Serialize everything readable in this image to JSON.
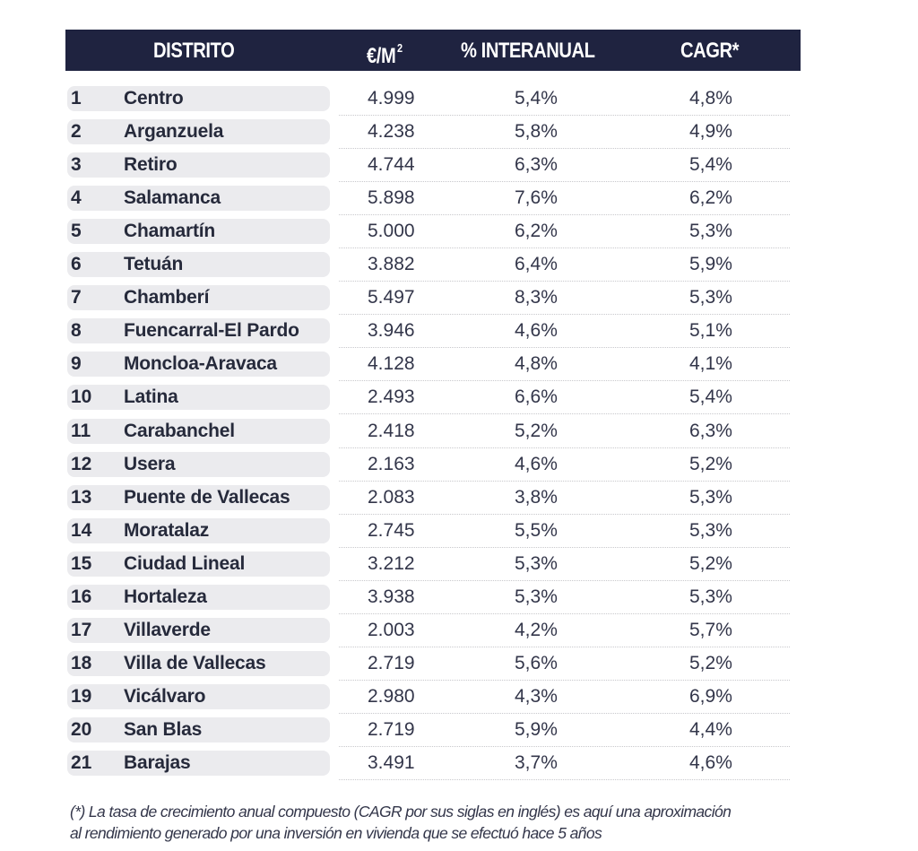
{
  "table": {
    "headers": {
      "distrito": "DISTRITO",
      "price": "€/M",
      "price_sup": "2",
      "interanual": "% INTERANUAL",
      "cagr": "CAGR*"
    },
    "colors": {
      "header_bg": "#1f2340",
      "header_text": "#ffffff",
      "pill_bg": "#ebebee",
      "text": "#262a3b"
    },
    "rows": [
      {
        "rank": "1",
        "name": "Centro",
        "price": "4.999",
        "interanual": "5,4%",
        "cagr": "4,8%"
      },
      {
        "rank": "2",
        "name": "Arganzuela",
        "price": "4.238",
        "interanual": "5,8%",
        "cagr": "4,9%"
      },
      {
        "rank": "3",
        "name": "Retiro",
        "price": "4.744",
        "interanual": "6,3%",
        "cagr": "5,4%"
      },
      {
        "rank": "4",
        "name": "Salamanca",
        "price": "5.898",
        "interanual": "7,6%",
        "cagr": "6,2%"
      },
      {
        "rank": "5",
        "name": "Chamartín",
        "price": "5.000",
        "interanual": "6,2%",
        "cagr": "5,3%"
      },
      {
        "rank": "6",
        "name": "Tetuán",
        "price": "3.882",
        "interanual": "6,4%",
        "cagr": "5,9%"
      },
      {
        "rank": "7",
        "name": "Chamberí",
        "price": "5.497",
        "interanual": "8,3%",
        "cagr": "5,3%"
      },
      {
        "rank": "8",
        "name": "Fuencarral-El Pardo",
        "price": "3.946",
        "interanual": "4,6%",
        "cagr": "5,1%"
      },
      {
        "rank": "9",
        "name": "Moncloa-Aravaca",
        "price": "4.128",
        "interanual": "4,8%",
        "cagr": "4,1%"
      },
      {
        "rank": "10",
        "name": "Latina",
        "price": "2.493",
        "interanual": "6,6%",
        "cagr": "5,4%"
      },
      {
        "rank": "11",
        "name": "Carabanchel",
        "price": "2.418",
        "interanual": "5,2%",
        "cagr": "6,3%"
      },
      {
        "rank": "12",
        "name": "Usera",
        "price": "2.163",
        "interanual": "4,6%",
        "cagr": "5,2%"
      },
      {
        "rank": "13",
        "name": "Puente de Vallecas",
        "price": "2.083",
        "interanual": "3,8%",
        "cagr": "5,3%"
      },
      {
        "rank": "14",
        "name": "Moratalaz",
        "price": "2.745",
        "interanual": "5,5%",
        "cagr": "5,3%"
      },
      {
        "rank": "15",
        "name": "Ciudad Lineal",
        "price": "3.212",
        "interanual": "5,3%",
        "cagr": "5,2%"
      },
      {
        "rank": "16",
        "name": "Hortaleza",
        "price": "3.938",
        "interanual": "5,3%",
        "cagr": "5,3%"
      },
      {
        "rank": "17",
        "name": "Villaverde",
        "price": "2.003",
        "interanual": "4,2%",
        "cagr": "5,7%"
      },
      {
        "rank": "18",
        "name": "Villa de Vallecas",
        "price": "2.719",
        "interanual": "5,6%",
        "cagr": "5,2%"
      },
      {
        "rank": "19",
        "name": "Vicálvaro",
        "price": "2.980",
        "interanual": "4,3%",
        "cagr": "6,9%"
      },
      {
        "rank": "20",
        "name": "San Blas",
        "price": "2.719",
        "interanual": "5,9%",
        "cagr": "4,4%"
      },
      {
        "rank": "21",
        "name": "Barajas",
        "price": "3.491",
        "interanual": "3,7%",
        "cagr": "4,6%"
      }
    ]
  },
  "footnote": {
    "line1": "(*) La tasa de crecimiento anual compuesto (CAGR por sus siglas en inglés) es aquí una aproximación",
    "line2": "al rendimiento generado por una inversión en vivienda que se efectuó hace 5 años"
  }
}
